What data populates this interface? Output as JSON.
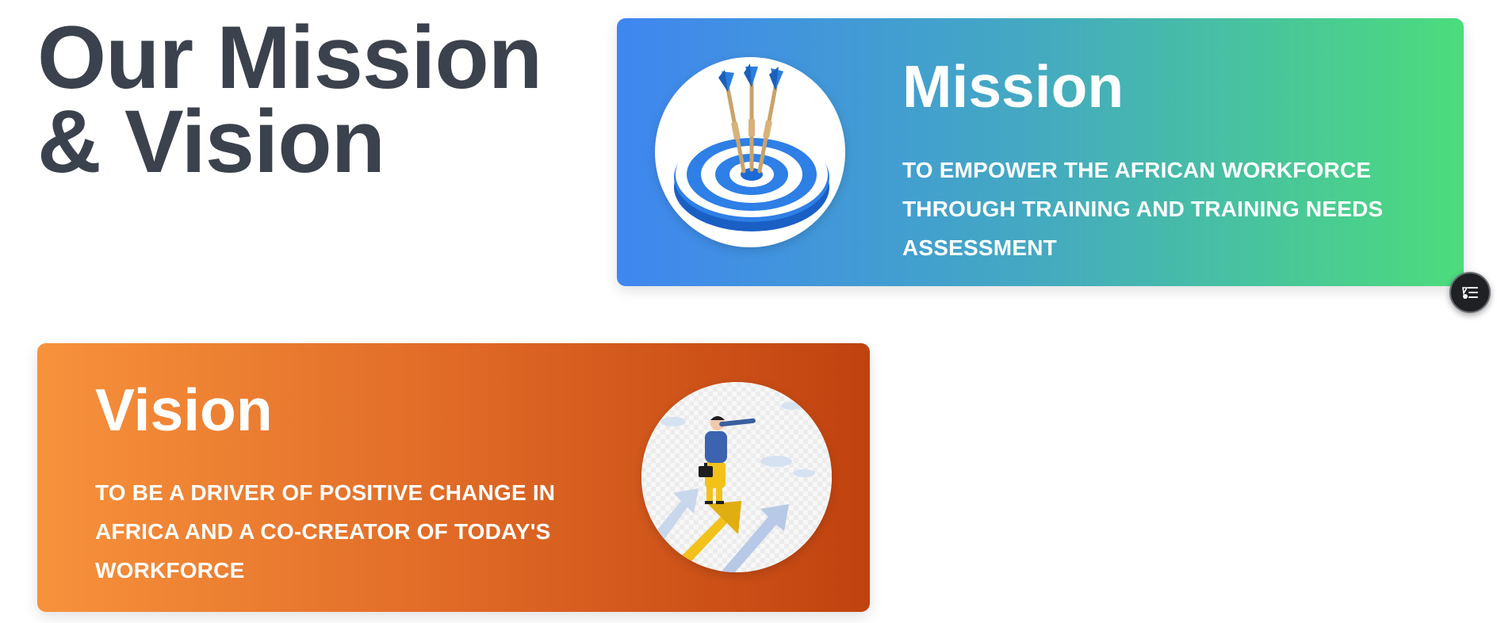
{
  "page_title": {
    "line1": "Our Mission",
    "line2": "& Vision"
  },
  "mission": {
    "title": "Mission",
    "text": "TO EMPOWER THE AFRICAN WORKFORCE THROUGH TRAINING AND TRAINING NEEDS ASSESSMENT",
    "image_icon": "dartboard-target-icon",
    "gradient": [
      "#3f86f0",
      "#4cdc7c"
    ]
  },
  "vision": {
    "title": "Vision",
    "text": "TO BE A DRIVER OF POSITIVE CHANGE IN AFRICA AND A CO-CREATOR OF TODAY'S WORKFORCE",
    "image_icon": "telescope-visionary-icon",
    "gradient": [
      "#f7923c",
      "#c0420f"
    ]
  },
  "floating_button": {
    "icon": "list-menu-icon"
  },
  "colors": {
    "heading": "#3b424d",
    "card_text": "#ffffff"
  }
}
